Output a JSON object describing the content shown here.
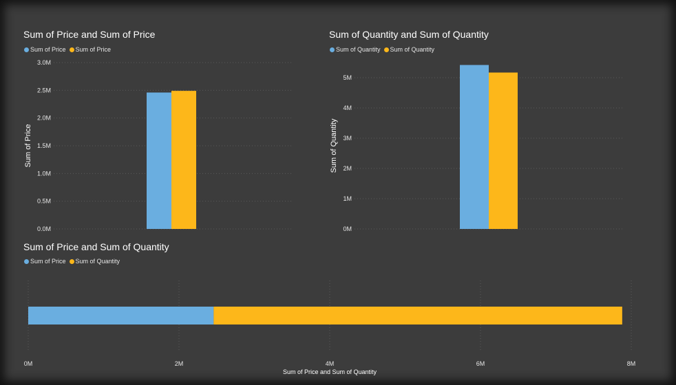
{
  "colors": {
    "series_blue": "#6aaee0",
    "series_yellow": "#fdb71a",
    "background": "#3c3c3c",
    "grid": "#5a5a5a",
    "text": "#e6e6e6"
  },
  "chart_data": [
    {
      "type": "bar",
      "title": "Sum of Price and Sum of Price",
      "ylabel": "Sum of Price",
      "xlabel": "",
      "ylim": [
        0,
        3000000
      ],
      "yticks": [
        0,
        500000,
        1000000,
        1500000,
        2000000,
        2500000,
        3000000
      ],
      "ytick_labels": [
        "0.0M",
        "0.5M",
        "1.0M",
        "1.5M",
        "2.0M",
        "2.5M",
        "3.0M"
      ],
      "legend_position": "top-left",
      "grid": true,
      "series": [
        {
          "name": "Sum of Price",
          "color": "#6aaee0",
          "values": [
            2460000
          ]
        },
        {
          "name": "Sum of Price",
          "color": "#fdb71a",
          "values": [
            2490000
          ]
        }
      ]
    },
    {
      "type": "bar",
      "title": "Sum of Quantity and Sum of Quantity",
      "ylabel": "Sum of Quantity",
      "xlabel": "",
      "ylim": [
        0,
        5500000
      ],
      "yticks": [
        0,
        1000000,
        2000000,
        3000000,
        4000000,
        5000000
      ],
      "ytick_labels": [
        "0M",
        "1M",
        "2M",
        "3M",
        "4M",
        "5M"
      ],
      "legend_position": "top-left",
      "grid": true,
      "series": [
        {
          "name": "Sum of Quantity",
          "color": "#6aaee0",
          "values": [
            5420000
          ]
        },
        {
          "name": "Sum of Quantity",
          "color": "#fdb71a",
          "values": [
            5170000
          ]
        }
      ]
    },
    {
      "type": "bar",
      "orientation": "horizontal",
      "stacked": true,
      "title": "Sum of Price and Sum of Quantity",
      "xlabel": "Sum of Price and Sum of Quantity",
      "ylabel": "",
      "xlim": [
        0,
        8000000
      ],
      "xticks": [
        0,
        2000000,
        4000000,
        6000000,
        8000000
      ],
      "xtick_labels": [
        "0M",
        "2M",
        "4M",
        "6M",
        "8M"
      ],
      "legend_position": "top-left",
      "grid": true,
      "series": [
        {
          "name": "Sum of Price",
          "color": "#6aaee0",
          "values": [
            2460000
          ]
        },
        {
          "name": "Sum of Quantity",
          "color": "#fdb71a",
          "values": [
            5420000
          ]
        }
      ]
    }
  ]
}
